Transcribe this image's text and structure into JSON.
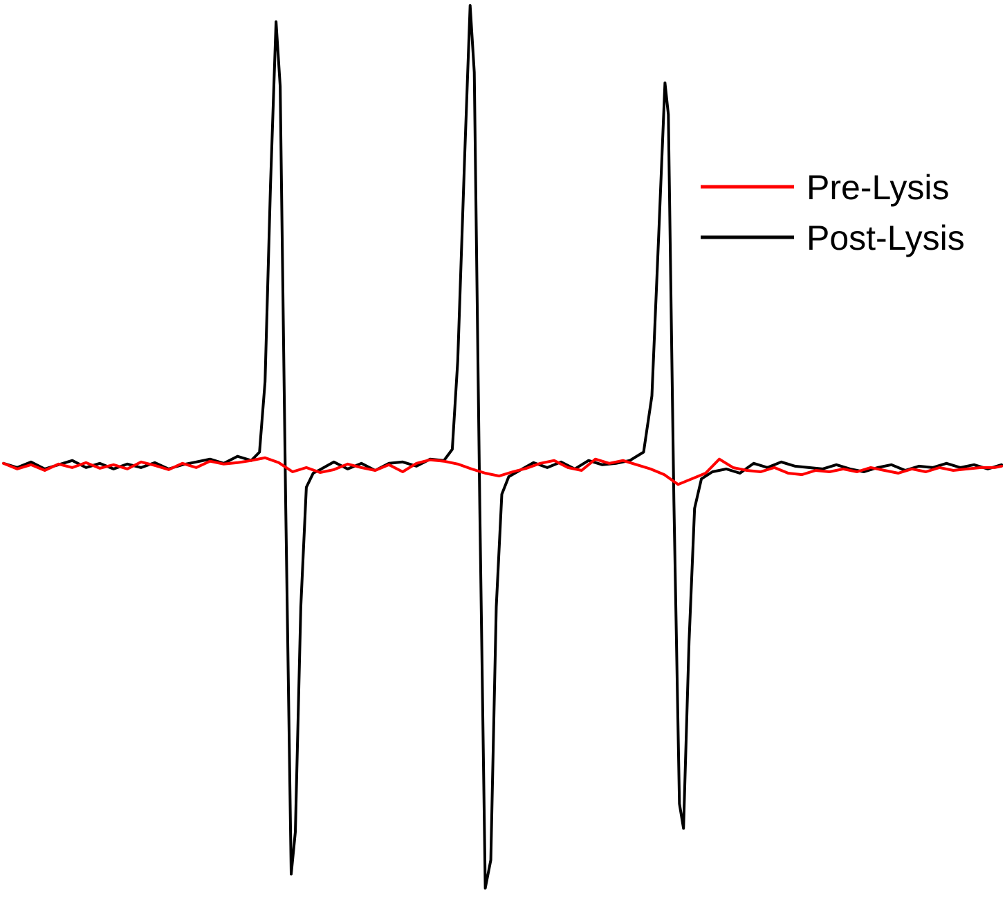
{
  "chart_data": {
    "type": "line",
    "title": "",
    "xlabel": "",
    "ylabel": "",
    "x_range": [
      0,
      1450
    ],
    "ylim": [
      -612,
      655
    ],
    "grid": false,
    "axes_visible": false,
    "legend": {
      "placement": "top-right",
      "entries": [
        {
          "label": "Pre-Lysis",
          "color": "#ff0000"
        },
        {
          "label": "Post-Lysis",
          "color": "#000000"
        }
      ]
    },
    "series": [
      {
        "name": "Pre-Lysis",
        "color": "#ff0000",
        "points": [
          [
            0,
            4
          ],
          [
            20,
            -4
          ],
          [
            40,
            2
          ],
          [
            60,
            -6
          ],
          [
            80,
            3
          ],
          [
            100,
            -2
          ],
          [
            120,
            5
          ],
          [
            140,
            -3
          ],
          [
            160,
            2
          ],
          [
            180,
            -4
          ],
          [
            200,
            6
          ],
          [
            220,
            1
          ],
          [
            240,
            -5
          ],
          [
            260,
            4
          ],
          [
            280,
            -2
          ],
          [
            300,
            7
          ],
          [
            320,
            3
          ],
          [
            340,
            5
          ],
          [
            360,
            8
          ],
          [
            380,
            12
          ],
          [
            400,
            5
          ],
          [
            420,
            -8
          ],
          [
            440,
            -2
          ],
          [
            460,
            -9
          ],
          [
            480,
            -5
          ],
          [
            500,
            3
          ],
          [
            520,
            -2
          ],
          [
            540,
            -6
          ],
          [
            560,
            2
          ],
          [
            580,
            -8
          ],
          [
            600,
            4
          ],
          [
            620,
            9
          ],
          [
            640,
            7
          ],
          [
            660,
            3
          ],
          [
            680,
            -4
          ],
          [
            700,
            -10
          ],
          [
            720,
            -14
          ],
          [
            740,
            -8
          ],
          [
            760,
            -3
          ],
          [
            780,
            4
          ],
          [
            800,
            8
          ],
          [
            820,
            -2
          ],
          [
            840,
            -6
          ],
          [
            860,
            10
          ],
          [
            880,
            4
          ],
          [
            900,
            8
          ],
          [
            920,
            2
          ],
          [
            940,
            -4
          ],
          [
            960,
            -12
          ],
          [
            980,
            -26
          ],
          [
            1000,
            -18
          ],
          [
            1020,
            -10
          ],
          [
            1040,
            10
          ],
          [
            1060,
            -2
          ],
          [
            1080,
            -6
          ],
          [
            1100,
            -8
          ],
          [
            1120,
            -2
          ],
          [
            1140,
            -10
          ],
          [
            1160,
            -12
          ],
          [
            1180,
            -6
          ],
          [
            1200,
            -8
          ],
          [
            1220,
            -4
          ],
          [
            1240,
            -8
          ],
          [
            1260,
            -2
          ],
          [
            1280,
            -6
          ],
          [
            1300,
            -10
          ],
          [
            1320,
            -4
          ],
          [
            1340,
            -8
          ],
          [
            1360,
            -2
          ],
          [
            1380,
            -6
          ],
          [
            1400,
            -4
          ],
          [
            1420,
            -2
          ],
          [
            1440,
            -2
          ],
          [
            1450,
            0
          ]
        ]
      },
      {
        "name": "Post-Lysis",
        "color": "#000000",
        "points": [
          [
            0,
            4
          ],
          [
            20,
            -2
          ],
          [
            40,
            6
          ],
          [
            60,
            -4
          ],
          [
            80,
            2
          ],
          [
            100,
            8
          ],
          [
            120,
            -2
          ],
          [
            140,
            4
          ],
          [
            160,
            -4
          ],
          [
            180,
            3
          ],
          [
            200,
            -2
          ],
          [
            220,
            5
          ],
          [
            240,
            -4
          ],
          [
            260,
            2
          ],
          [
            280,
            6
          ],
          [
            300,
            10
          ],
          [
            320,
            4
          ],
          [
            340,
            14
          ],
          [
            360,
            8
          ],
          [
            372,
            20
          ],
          [
            380,
            120
          ],
          [
            388,
            400
          ],
          [
            396,
            632
          ],
          [
            402,
            540
          ],
          [
            410,
            -50
          ],
          [
            418,
            -580
          ],
          [
            424,
            -520
          ],
          [
            432,
            -200
          ],
          [
            440,
            -30
          ],
          [
            450,
            -10
          ],
          [
            460,
            -5
          ],
          [
            480,
            6
          ],
          [
            500,
            -4
          ],
          [
            520,
            4
          ],
          [
            540,
            -6
          ],
          [
            560,
            4
          ],
          [
            580,
            6
          ],
          [
            600,
            0
          ],
          [
            620,
            10
          ],
          [
            640,
            8
          ],
          [
            652,
            24
          ],
          [
            660,
            150
          ],
          [
            670,
            440
          ],
          [
            678,
            655
          ],
          [
            684,
            560
          ],
          [
            692,
            -60
          ],
          [
            700,
            -600
          ],
          [
            708,
            -560
          ],
          [
            716,
            -200
          ],
          [
            724,
            -40
          ],
          [
            734,
            -15
          ],
          [
            750,
            -6
          ],
          [
            770,
            5
          ],
          [
            790,
            -2
          ],
          [
            810,
            6
          ],
          [
            830,
            -4
          ],
          [
            850,
            8
          ],
          [
            870,
            2
          ],
          [
            890,
            4
          ],
          [
            910,
            8
          ],
          [
            930,
            20
          ],
          [
            942,
            100
          ],
          [
            952,
            330
          ],
          [
            961,
            545
          ],
          [
            966,
            500
          ],
          [
            974,
            -50
          ],
          [
            982,
            -480
          ],
          [
            988,
            -515
          ],
          [
            996,
            -250
          ],
          [
            1004,
            -60
          ],
          [
            1014,
            -18
          ],
          [
            1030,
            -8
          ],
          [
            1050,
            -4
          ],
          [
            1070,
            -10
          ],
          [
            1090,
            4
          ],
          [
            1110,
            -2
          ],
          [
            1130,
            6
          ],
          [
            1150,
            0
          ],
          [
            1170,
            -2
          ],
          [
            1190,
            -4
          ],
          [
            1210,
            2
          ],
          [
            1230,
            -4
          ],
          [
            1250,
            -8
          ],
          [
            1270,
            -2
          ],
          [
            1290,
            2
          ],
          [
            1310,
            -6
          ],
          [
            1330,
            0
          ],
          [
            1350,
            -2
          ],
          [
            1370,
            4
          ],
          [
            1390,
            -2
          ],
          [
            1410,
            2
          ],
          [
            1430,
            -4
          ],
          [
            1450,
            2
          ]
        ]
      }
    ]
  }
}
